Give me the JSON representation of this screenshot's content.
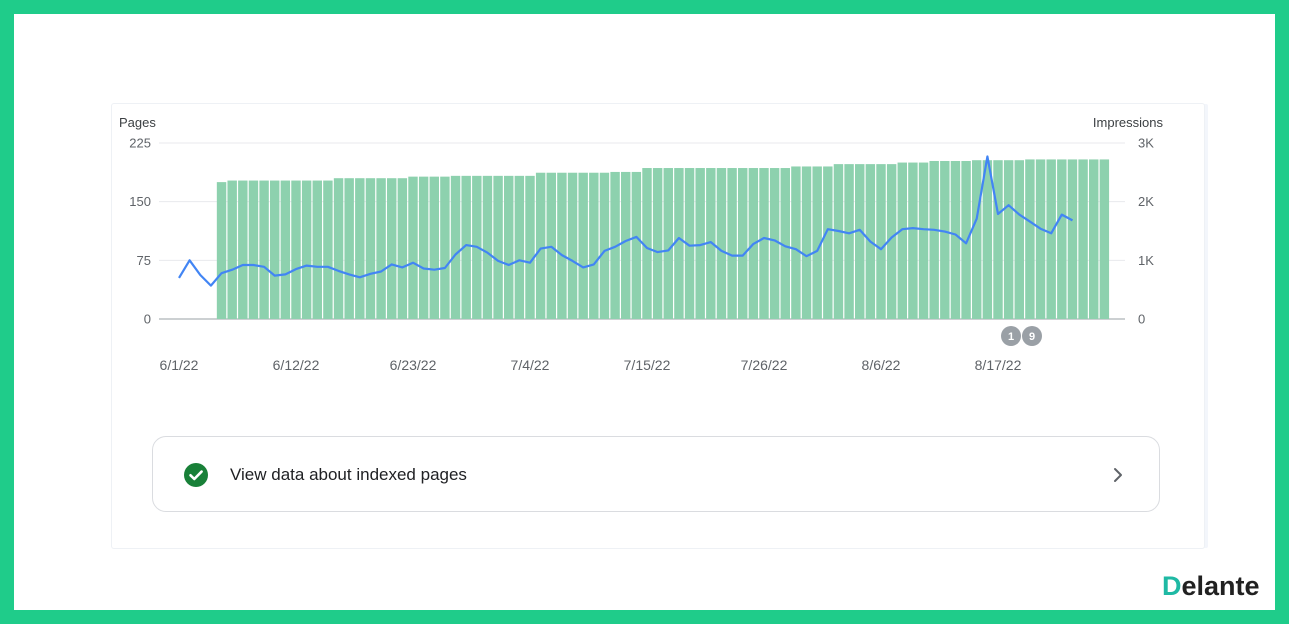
{
  "chart_data": {
    "type": "bar+line",
    "left_axis": {
      "label": "Pages",
      "ticks": [
        "0",
        "75",
        "150",
        "225"
      ],
      "range": [
        0,
        225
      ]
    },
    "right_axis": {
      "label": "Impressions",
      "ticks": [
        "0",
        "1K",
        "2K",
        "3K"
      ],
      "range": [
        0,
        3000
      ]
    },
    "x_ticks": [
      "6/1/22",
      "6/12/22",
      "6/23/22",
      "7/4/22",
      "7/15/22",
      "7/26/22",
      "8/6/22",
      "8/17/22"
    ],
    "start_date": "2022-06-01",
    "series": [
      {
        "name": "Pages",
        "type": "bar",
        "axis": "left",
        "color": "#8dd1ae",
        "values": [
          0,
          0,
          0,
          0,
          175,
          177,
          177,
          177,
          177,
          177,
          177,
          177,
          177,
          177,
          177,
          180,
          180,
          180,
          180,
          180,
          180,
          180,
          182,
          182,
          182,
          182,
          183,
          183,
          183,
          183,
          183,
          183,
          183,
          183,
          187,
          187,
          187,
          187,
          187,
          187,
          187,
          188,
          188,
          188,
          193,
          193,
          193,
          193,
          193,
          193,
          193,
          193,
          193,
          193,
          193,
          193,
          193,
          193,
          195,
          195,
          195,
          195,
          198,
          198,
          198,
          198,
          198,
          198,
          200,
          200,
          200,
          202,
          202,
          202,
          202,
          203,
          203,
          203,
          203,
          203,
          204,
          204,
          204,
          204,
          204,
          204,
          204,
          204
        ]
      },
      {
        "name": "Impressions",
        "type": "line",
        "axis": "right",
        "color": "#4285f4",
        "values": [
          700,
          1000,
          750,
          570,
          780,
          840,
          920,
          920,
          890,
          740,
          760,
          850,
          910,
          890,
          890,
          820,
          760,
          710,
          770,
          810,
          930,
          880,
          960,
          860,
          840,
          870,
          1100,
          1260,
          1230,
          1130,
          990,
          920,
          1000,
          960,
          1200,
          1230,
          1090,
          990,
          880,
          930,
          1160,
          1230,
          1330,
          1400,
          1210,
          1140,
          1170,
          1380,
          1250,
          1260,
          1310,
          1160,
          1080,
          1080,
          1280,
          1380,
          1340,
          1240,
          1190,
          1070,
          1160,
          1530,
          1500,
          1460,
          1520,
          1320,
          1190,
          1390,
          1530,
          1550,
          1530,
          1520,
          1490,
          1440,
          1290,
          1710,
          2770,
          1790,
          1940,
          1780,
          1660,
          1540,
          1460,
          1780,
          1680
        ]
      }
    ],
    "annotations": [
      "1",
      "9"
    ]
  },
  "link": {
    "label": "View data about indexed pages"
  },
  "logo": {
    "text_d": "D",
    "text_rest": "elante"
  }
}
